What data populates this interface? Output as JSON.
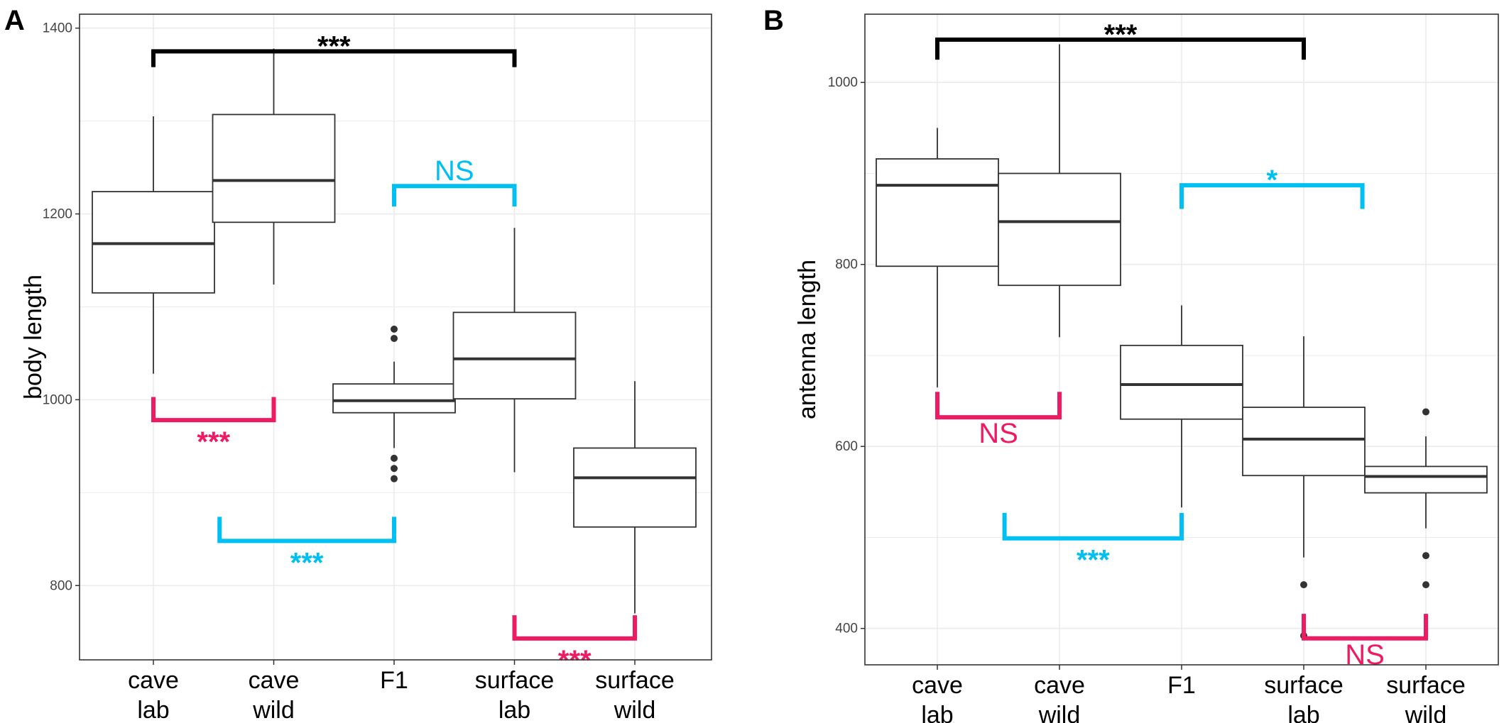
{
  "colors": {
    "black_bracket": "#000000",
    "blue_bracket": "#00bff3",
    "pink_bracket": "#ee1a64",
    "box_stroke": "#333333",
    "grid": "#ebebeb",
    "panel_border": "#333333"
  },
  "chart_data": [
    {
      "type": "box",
      "panel_label": "A",
      "xlabel": "",
      "ylabel": "body length",
      "ylim": [
        720,
        1415
      ],
      "yticks": [
        800,
        1000,
        1200,
        1400
      ],
      "grid": true,
      "categories": [
        "cave\nlab",
        "cave\nwild",
        "F1",
        "surface\nlab",
        "surface\nwild"
      ],
      "boxes": [
        {
          "q1": 1115,
          "median": 1168,
          "q3": 1224,
          "whisker_low": 1028,
          "whisker_high": 1305,
          "outliers": []
        },
        {
          "q1": 1191,
          "median": 1236,
          "q3": 1307,
          "whisker_low": 1124,
          "whisker_high": 1378,
          "outliers": []
        },
        {
          "q1": 986,
          "median": 999,
          "q3": 1017,
          "whisker_low": 948,
          "whisker_high": 1041,
          "outliers": [
            1076,
            1066,
            937,
            926,
            915
          ]
        },
        {
          "q1": 1001,
          "median": 1044,
          "q3": 1094,
          "whisker_low": 922,
          "whisker_high": 1185,
          "outliers": []
        },
        {
          "q1": 863,
          "median": 916,
          "q3": 948,
          "whisker_low": 770,
          "whisker_high": 1020,
          "outliers": []
        }
      ],
      "brackets": [
        {
          "from": 0,
          "to": 3,
          "y": 1375,
          "tick_to": 1358,
          "label": "***",
          "color": "black",
          "label_pos": "above"
        },
        {
          "from": 2,
          "to": 3,
          "y": 1230,
          "tick_to": 1208,
          "label": "NS",
          "color": "blue",
          "label_pos": "above"
        },
        {
          "from": 0,
          "to": 1,
          "y": 978,
          "tick_to": 1003,
          "label": "***",
          "color": "pink",
          "label_pos": "below"
        },
        {
          "from": 0.55,
          "to": 2,
          "y": 848,
          "tick_to": 874,
          "label": "***",
          "color": "blue",
          "label_pos": "below"
        },
        {
          "from": 3,
          "to": 4,
          "y": 743,
          "tick_to": 768,
          "label": "***",
          "color": "pink",
          "label_pos": "below"
        }
      ]
    },
    {
      "type": "box",
      "panel_label": "B",
      "xlabel": "",
      "ylabel": "antenna length",
      "ylim": [
        360,
        1075
      ],
      "yticks": [
        400,
        600,
        800,
        1000
      ],
      "grid": true,
      "categories": [
        "cave\nlab",
        "cave\nwild",
        "F1",
        "surface\nlab",
        "surface\nwild"
      ],
      "boxes": [
        {
          "q1": 798,
          "median": 887,
          "q3": 916,
          "whisker_low": 665,
          "whisker_high": 950,
          "outliers": []
        },
        {
          "q1": 777,
          "median": 847,
          "q3": 900,
          "whisker_low": 720,
          "whisker_high": 1042,
          "outliers": []
        },
        {
          "q1": 630,
          "median": 668,
          "q3": 711,
          "whisker_low": 533,
          "whisker_high": 755,
          "outliers": []
        },
        {
          "q1": 568,
          "median": 608,
          "q3": 643,
          "whisker_low": 478,
          "whisker_high": 721,
          "outliers": [
            448,
            392
          ]
        },
        {
          "q1": 549,
          "median": 567,
          "q3": 578,
          "whisker_low": 510,
          "whisker_high": 611,
          "outliers": [
            638,
            480,
            448
          ]
        }
      ],
      "brackets": [
        {
          "from": 0,
          "to": 3,
          "y": 1047,
          "tick_to": 1025,
          "label": "***",
          "color": "black",
          "label_pos": "above"
        },
        {
          "from": 2,
          "to": 3.48,
          "y": 887,
          "tick_to": 861,
          "label": "*",
          "color": "blue",
          "label_pos": "above"
        },
        {
          "from": 0,
          "to": 1,
          "y": 632,
          "tick_to": 660,
          "label": "NS",
          "color": "pink",
          "label_pos": "below"
        },
        {
          "from": 0.55,
          "to": 2,
          "y": 499,
          "tick_to": 527,
          "label": "***",
          "color": "blue",
          "label_pos": "below"
        },
        {
          "from": 3,
          "to": 4,
          "y": 389,
          "tick_to": 416,
          "label": "NS",
          "color": "pink",
          "label_pos": "below"
        }
      ]
    }
  ]
}
